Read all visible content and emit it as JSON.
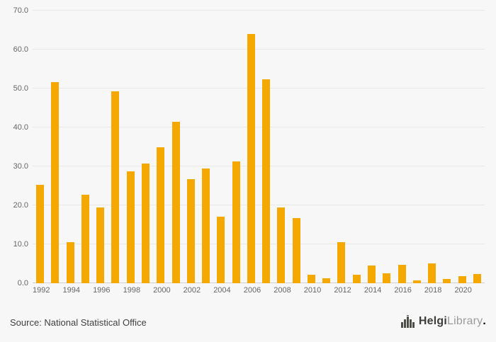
{
  "chart_data": {
    "type": "bar",
    "title": "",
    "xlabel": "",
    "ylabel": "",
    "categories": [
      "1992",
      "1993",
      "1994",
      "1995",
      "1996",
      "1997",
      "1998",
      "1999",
      "2000",
      "2001",
      "2002",
      "2003",
      "2004",
      "2005",
      "2006",
      "2007",
      "2008",
      "2009",
      "2010",
      "2011",
      "2012",
      "2013",
      "2014",
      "2015",
      "2016",
      "2017",
      "2018",
      "2019",
      "2020",
      "2021"
    ],
    "values": [
      25.2,
      51.7,
      10.5,
      22.8,
      19.5,
      49.2,
      28.8,
      30.8,
      35.0,
      41.5,
      26.7,
      29.4,
      17.1,
      31.3,
      64.0,
      52.3,
      19.5,
      16.7,
      2.2,
      1.2,
      10.5,
      2.1,
      4.5,
      2.6,
      4.7,
      0.8,
      5.1,
      1.1,
      1.9,
      2.4
    ],
    "ylim": [
      0,
      70
    ],
    "ytick": 10,
    "y_tick_labels": [
      "0.0",
      "10.0",
      "20.0",
      "30.0",
      "40.0",
      "50.0",
      "60.0",
      "70.0"
    ],
    "x_tick_labels": [
      "1992",
      "1994",
      "1996",
      "1998",
      "2000",
      "2002",
      "2004",
      "2006",
      "2008",
      "2010",
      "2012",
      "2014",
      "2016",
      "2018",
      "2020"
    ],
    "grid": true,
    "legend": false,
    "bar_color": "#F5A800"
  },
  "colors": {
    "background": "#f7f7f7",
    "gridline": "#e8e8e8",
    "axis_line": "#cfcfcf",
    "tick_text": "#666666",
    "bar": "#F5A800",
    "brand_dark": "#3d3d3c",
    "brand_light": "#9b9b9b",
    "brand_dot": "#F5A800"
  },
  "footer": {
    "source": "Source: National Statistical Office",
    "brand": {
      "part1": "Helgi",
      "part2": "Library",
      "dot": "."
    }
  }
}
